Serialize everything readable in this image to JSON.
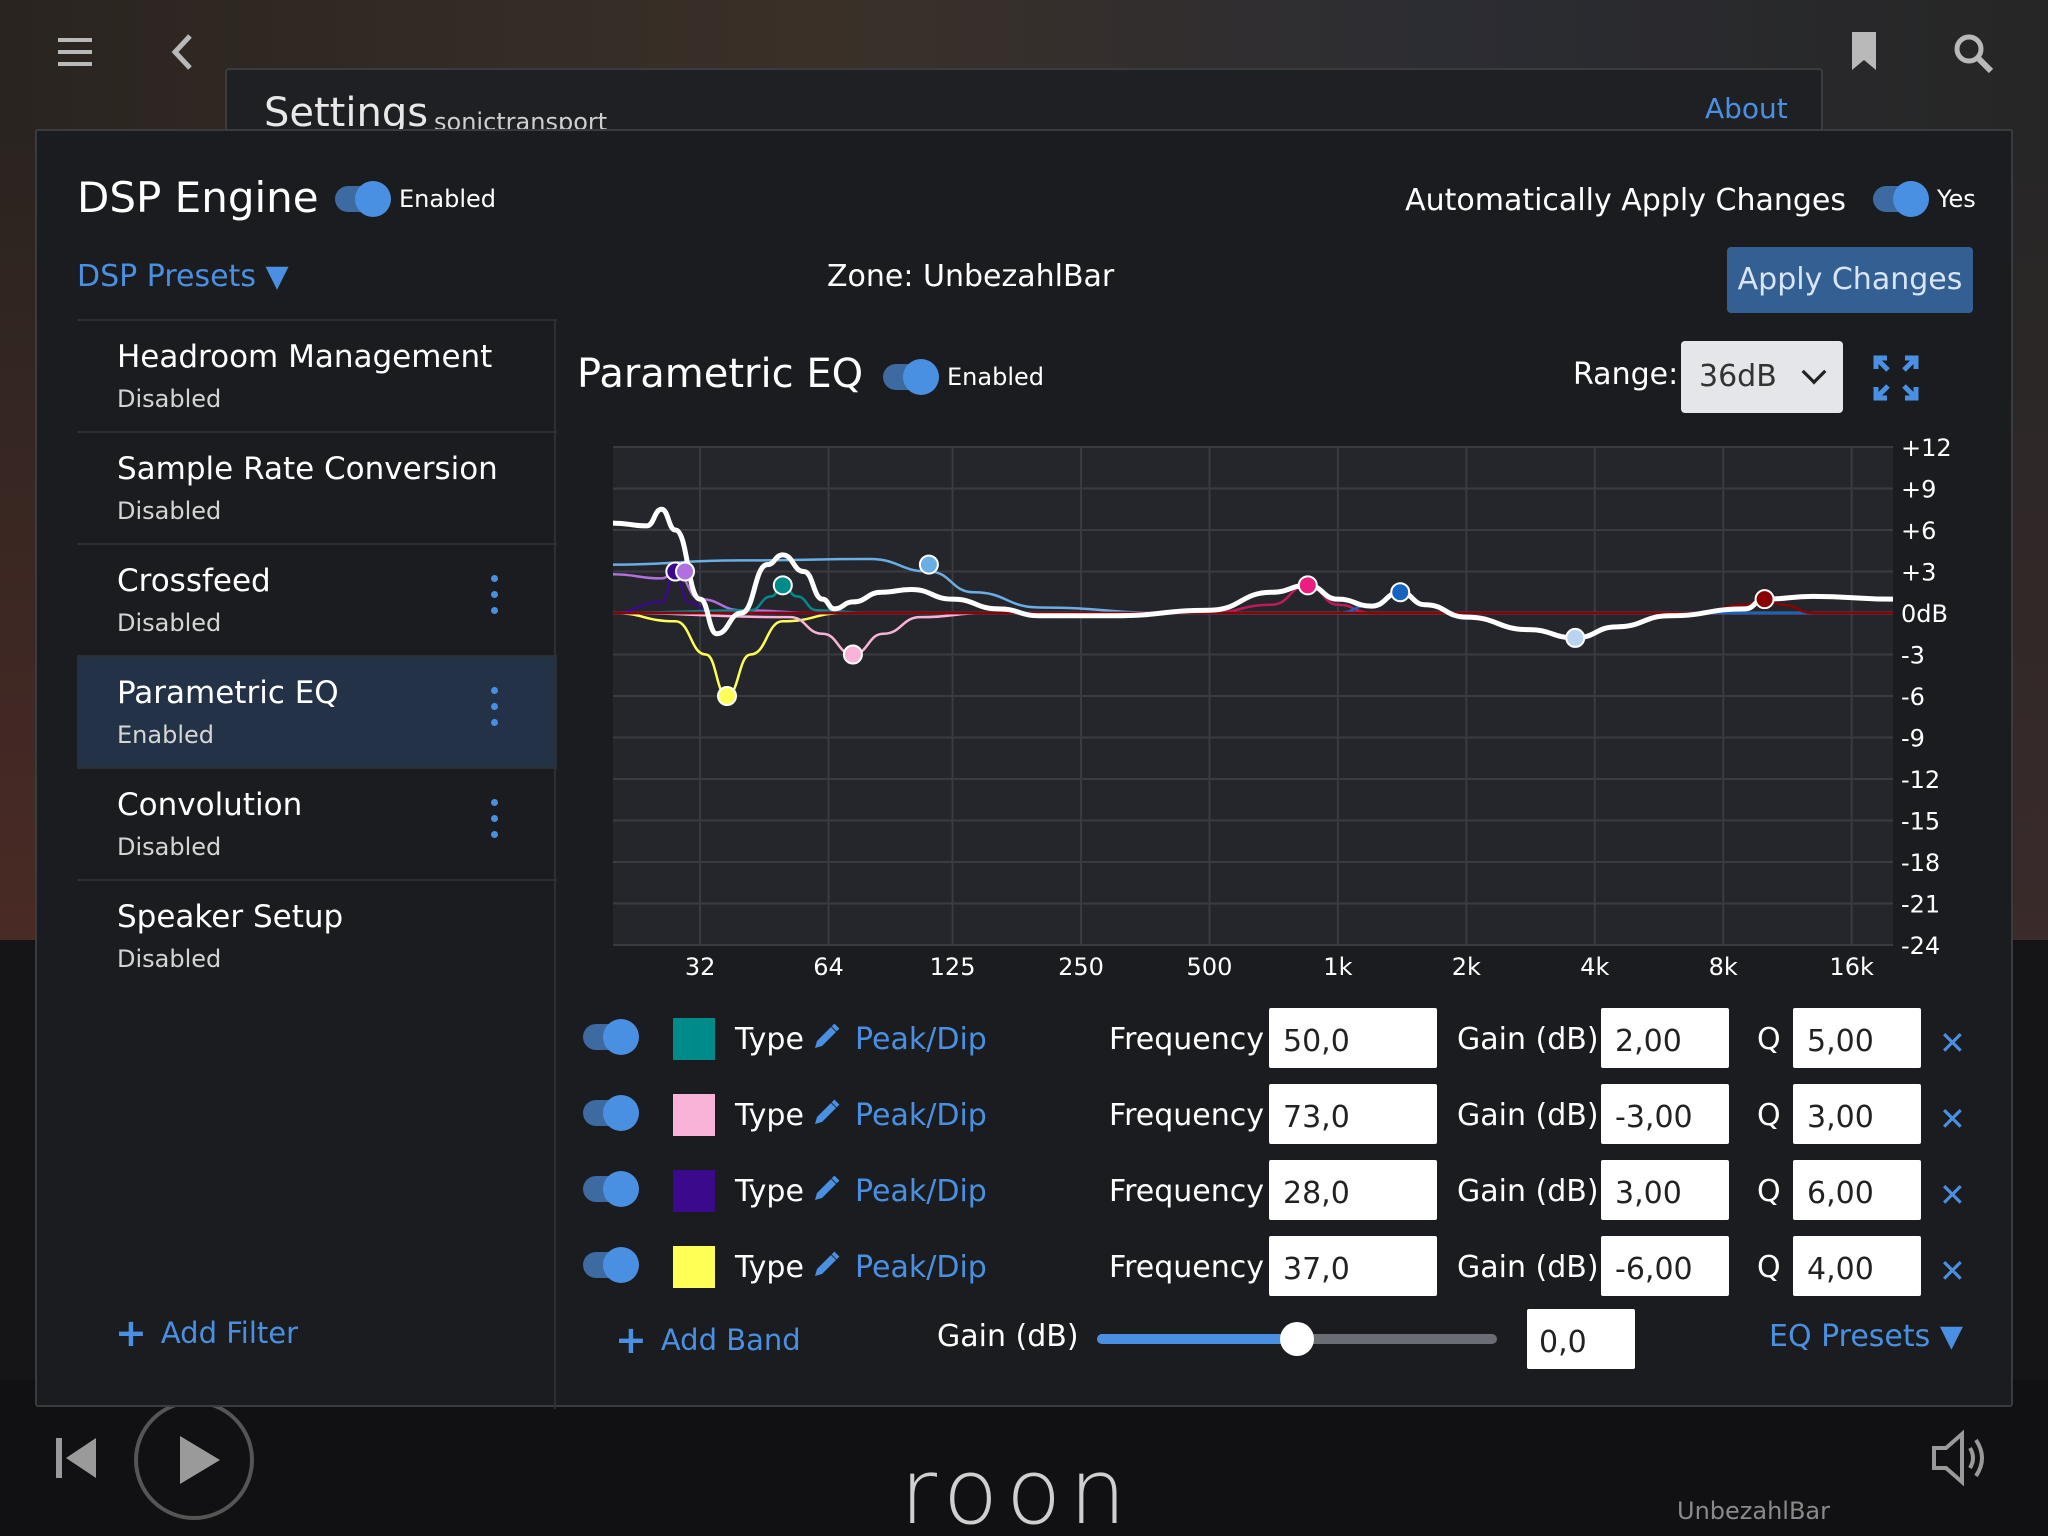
{
  "background": {
    "settings_title": "Settings",
    "settings_subtitle": "sonictransport",
    "about_link": "About",
    "player_zone": "UnbezahlBar",
    "logo_text": "roon"
  },
  "header": {
    "title": "DSP Engine",
    "engine_toggle_label": "Enabled",
    "auto_apply_label": "Automatically Apply Changes",
    "auto_apply_value": "Yes",
    "presets_label": "DSP Presets ▼",
    "zone_label": "Zone: UnbezahlBar",
    "apply_button": "Apply Changes"
  },
  "sidebar": {
    "items": [
      {
        "name": "Headroom Management",
        "status": "Disabled",
        "menu": false,
        "active": false
      },
      {
        "name": "Sample Rate Conversion",
        "status": "Disabled",
        "menu": false,
        "active": false
      },
      {
        "name": "Crossfeed",
        "status": "Disabled",
        "menu": true,
        "active": false
      },
      {
        "name": "Parametric EQ",
        "status": "Enabled",
        "menu": true,
        "active": true
      },
      {
        "name": "Convolution",
        "status": "Disabled",
        "menu": true,
        "active": false
      },
      {
        "name": "Speaker Setup",
        "status": "Disabled",
        "menu": false,
        "active": false
      }
    ],
    "add_filter": "Add Filter"
  },
  "eq": {
    "title": "Parametric EQ",
    "toggle_label": "Enabled",
    "range_label": "Range:",
    "range_value": "36dB",
    "bands": [
      {
        "color": "#008b8b",
        "type_label": "Type",
        "type_value": "Peak/Dip",
        "freq_label": "Frequency",
        "frequency": "50,0",
        "gain_label": "Gain (dB)",
        "gain": "2,00",
        "q_label": "Q",
        "q": "5,00"
      },
      {
        "color": "#f9b3d8",
        "type_label": "Type",
        "type_value": "Peak/Dip",
        "freq_label": "Frequency",
        "frequency": "73,0",
        "gain_label": "Gain (dB)",
        "gain": "-3,00",
        "q_label": "Q",
        "q": "3,00"
      },
      {
        "color": "#3b0a8c",
        "type_label": "Type",
        "type_value": "Peak/Dip",
        "freq_label": "Frequency",
        "frequency": "28,0",
        "gain_label": "Gain (dB)",
        "gain": "3,00",
        "q_label": "Q",
        "q": "6,00"
      },
      {
        "color": "#ffff55",
        "type_label": "Type",
        "type_value": "Peak/Dip",
        "freq_label": "Frequency",
        "frequency": "37,0",
        "gain_label": "Gain (dB)",
        "gain": "-6,00",
        "q_label": "Q",
        "q": "4,00"
      }
    ],
    "add_band": "Add Band",
    "master_gain_label": "Gain (dB)",
    "master_gain_value": "0,0",
    "master_gain_slider_fraction": 0.5,
    "eq_presets": "EQ Presets ▼"
  },
  "chart_data": {
    "type": "line",
    "x_scale": "log",
    "x_tick_labels": [
      "32",
      "64",
      "125",
      "250",
      "500",
      "1k",
      "2k",
      "4k",
      "8k",
      "16k"
    ],
    "x_ticks": [
      32,
      64,
      125,
      250,
      500,
      1000,
      2000,
      4000,
      8000,
      16000
    ],
    "xlim": [
      20,
      20000
    ],
    "y_tick_labels": [
      "+12",
      "+9",
      "+6",
      "+3",
      "0dB",
      "-3",
      "-6",
      "-9",
      "-12",
      "-15",
      "-18",
      "-21",
      "-24"
    ],
    "y_ticks": [
      12,
      9,
      6,
      3,
      0,
      -3,
      -6,
      -9,
      -12,
      -15,
      -18,
      -21,
      -24
    ],
    "ylim": [
      -24,
      12
    ],
    "grid": true,
    "series": [
      {
        "color": "#ffffff",
        "points": [
          [
            20,
            6.5
          ],
          [
            24,
            6.3
          ],
          [
            26,
            7.5
          ],
          [
            28,
            6.0
          ],
          [
            32,
            1.0
          ],
          [
            35,
            -1.5
          ],
          [
            40,
            0
          ],
          [
            46,
            3.5
          ],
          [
            50,
            4.2
          ],
          [
            56,
            3.0
          ],
          [
            62,
            1.0
          ],
          [
            66,
            0.3
          ],
          [
            73,
            0.8
          ],
          [
            85,
            1.5
          ],
          [
            100,
            1.7
          ],
          [
            125,
            1.0
          ],
          [
            160,
            0.3
          ],
          [
            200,
            -0.2
          ],
          [
            300,
            -0.2
          ],
          [
            500,
            0.2
          ],
          [
            700,
            1.5
          ],
          [
            850,
            2.0
          ],
          [
            1000,
            1.0
          ],
          [
            1200,
            0.5
          ],
          [
            1400,
            1.5
          ],
          [
            1600,
            0.6
          ],
          [
            2000,
            -0.3
          ],
          [
            2800,
            -1.2
          ],
          [
            3600,
            -1.8
          ],
          [
            4500,
            -1.0
          ],
          [
            6000,
            -0.2
          ],
          [
            9000,
            0.3
          ],
          [
            10000,
            1.0
          ],
          [
            13000,
            1.2
          ],
          [
            20000,
            1.0
          ]
        ]
      },
      {
        "color": "#6aaee6",
        "points": [
          [
            20,
            3.5
          ],
          [
            40,
            3.8
          ],
          [
            80,
            3.9
          ],
          [
            110,
            3.0
          ],
          [
            140,
            1.5
          ],
          [
            200,
            0.4
          ],
          [
            400,
            0
          ],
          [
            20000,
            0
          ]
        ]
      },
      {
        "color": "#b070e0",
        "points": [
          [
            20,
            2.8
          ],
          [
            26,
            2.5
          ],
          [
            28,
            3.0
          ],
          [
            32,
            1.0
          ],
          [
            40,
            0.2
          ],
          [
            60,
            0
          ],
          [
            20000,
            0
          ]
        ]
      },
      {
        "color": "#3b0a8c",
        "points": [
          [
            20,
            0
          ],
          [
            26,
            0.8
          ],
          [
            28,
            3.0
          ],
          [
            30,
            0.8
          ],
          [
            34,
            0
          ],
          [
            20000,
            0
          ]
        ]
      },
      {
        "color": "#ffff55",
        "points": [
          [
            20,
            0
          ],
          [
            28,
            -0.6
          ],
          [
            33,
            -3.0
          ],
          [
            37,
            -6.0
          ],
          [
            42,
            -3.0
          ],
          [
            50,
            -0.6
          ],
          [
            70,
            0
          ],
          [
            20000,
            0
          ]
        ]
      },
      {
        "color": "#008b8b",
        "points": [
          [
            20,
            0
          ],
          [
            42,
            0.2
          ],
          [
            47,
            1.2
          ],
          [
            50,
            2.0
          ],
          [
            54,
            1.2
          ],
          [
            60,
            0.2
          ],
          [
            80,
            0
          ],
          [
            20000,
            0
          ]
        ]
      },
      {
        "color": "#f9b3d8",
        "points": [
          [
            20,
            0
          ],
          [
            52,
            -0.3
          ],
          [
            62,
            -1.5
          ],
          [
            73,
            -3.0
          ],
          [
            86,
            -1.5
          ],
          [
            105,
            -0.3
          ],
          [
            150,
            0
          ],
          [
            20000,
            0
          ]
        ]
      },
      {
        "color": "#c2185b",
        "points": [
          [
            20,
            0
          ],
          [
            500,
            0
          ],
          [
            700,
            0.6
          ],
          [
            850,
            2.0
          ],
          [
            1000,
            0.6
          ],
          [
            1200,
            0
          ],
          [
            20000,
            0
          ]
        ]
      },
      {
        "color": "#1565c0",
        "points": [
          [
            20,
            0
          ],
          [
            1000,
            0
          ],
          [
            1200,
            0.6
          ],
          [
            1400,
            1.5
          ],
          [
            1600,
            0.6
          ],
          [
            1900,
            0
          ],
          [
            20000,
            0
          ]
        ]
      },
      {
        "color": "#8b0000",
        "points": [
          [
            20,
            0
          ],
          [
            7000,
            0
          ],
          [
            9000,
            0.6
          ],
          [
            10000,
            1.0
          ],
          [
            11000,
            0.6
          ],
          [
            13000,
            0
          ],
          [
            20000,
            0
          ]
        ]
      }
    ],
    "band_markers": [
      {
        "freq": 28,
        "gain": 3.0,
        "color": "#3b0a8c"
      },
      {
        "freq": 29.5,
        "gain": 3.0,
        "color": "#b070e0"
      },
      {
        "freq": 37,
        "gain": -6.0,
        "color": "#ffff55"
      },
      {
        "freq": 50,
        "gain": 2.0,
        "color": "#008b8b"
      },
      {
        "freq": 73,
        "gain": -3.0,
        "color": "#f9b3d8"
      },
      {
        "freq": 110,
        "gain": 3.5,
        "color": "#6aaee6"
      },
      {
        "freq": 850,
        "gain": 2.0,
        "color": "#e91e80"
      },
      {
        "freq": 1400,
        "gain": 1.5,
        "color": "#1565c0"
      },
      {
        "freq": 3600,
        "gain": -1.8,
        "color": "#b8d4f0"
      },
      {
        "freq": 10000,
        "gain": 1.0,
        "color": "#8b0000"
      }
    ]
  }
}
